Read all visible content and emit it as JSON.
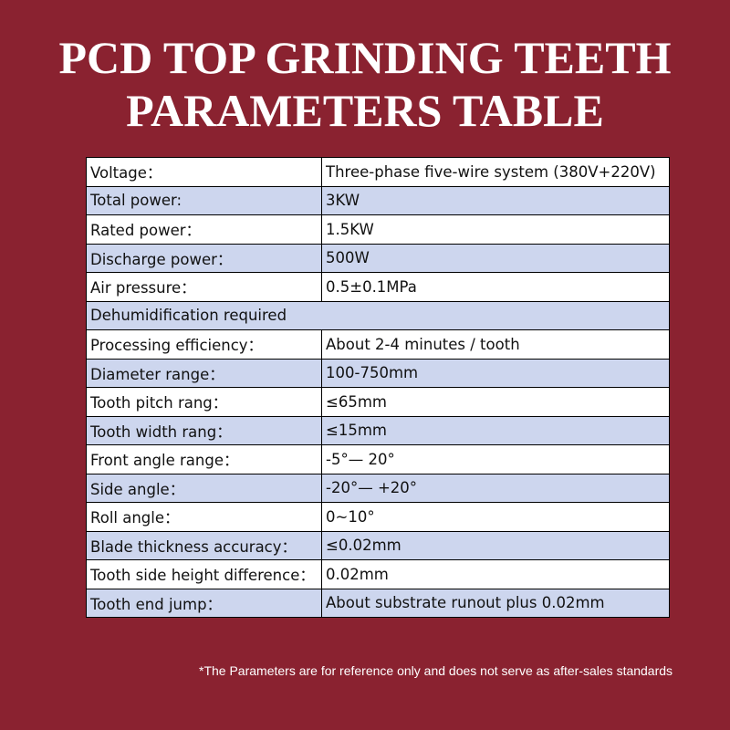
{
  "header": {
    "title": [
      "PCD TOP GRINDING TEETH",
      "PARAMETERS TABLE"
    ]
  },
  "table": {
    "rows": [
      [
        "Voltage：",
        "Three-phase five-wire system (380V+220V)"
      ],
      [
        "Total power:",
        "3KW"
      ],
      [
        "Rated power：",
        "1.5KW"
      ],
      [
        "Discharge power：",
        "500W"
      ],
      [
        "Air pressure：",
        "0.5±0.1MPa"
      ],
      [
        "Dehumidification required"
      ],
      [
        "Processing efficiency：",
        "About 2-4 minutes / tooth"
      ],
      [
        "Diameter range：",
        "100-750mm"
      ],
      [
        "Tooth pitch rang：",
        "≤65mm"
      ],
      [
        "Tooth width rang：",
        "≤15mm"
      ],
      [
        "Front angle range：",
        "-5°— 20°"
      ],
      [
        "Side angle：",
        "-20°— +20°"
      ],
      [
        "Roll angle：",
        "0~10°"
      ],
      [
        "Blade thickness accuracy：",
        "≤0.02mm"
      ],
      [
        "Tooth side height difference：",
        "0.02mm"
      ],
      [
        "Tooth end jump：",
        "About substrate runout plus 0.02mm"
      ]
    ]
  },
  "footnote": "*The Parameters are for reference only and does not serve as after-sales standards"
}
